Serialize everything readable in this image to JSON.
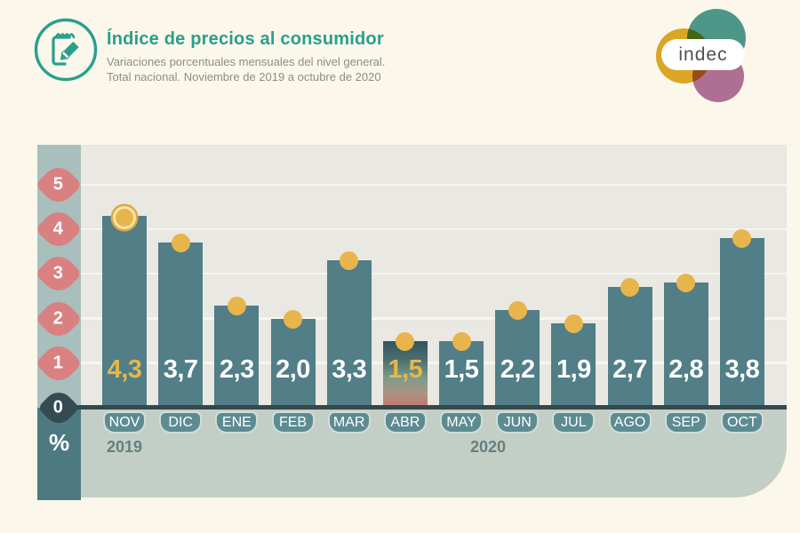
{
  "header": {
    "title": "Índice de precios al consumidor",
    "subtitle_line1": "Variaciones porcentuales mensuales del nivel general.",
    "subtitle_line2": "Total nacional. Noviembre de 2019 a octubre de 2020"
  },
  "logo": {
    "text": "indec",
    "circle_colors": {
      "yellow": "#dfaa28",
      "teal": "#4f9b94",
      "purple": "#b173a0"
    }
  },
  "chart_data": {
    "type": "bar",
    "title": "Índice de precios al consumidor",
    "subtitle": "Variaciones porcentuales mensuales del nivel general. Total nacional. Noviembre de 2019 a octubre de 2020",
    "ylabel": "%",
    "ylim": [
      0,
      5
    ],
    "y_ticks": [
      0,
      1,
      2,
      3,
      4,
      5
    ],
    "grid": true,
    "legend": "none",
    "categories": [
      "NOV",
      "DIC",
      "ENE",
      "FEB",
      "MAR",
      "ABR",
      "MAY",
      "JUN",
      "JUL",
      "AGO",
      "SEP",
      "OCT"
    ],
    "values": [
      4.3,
      3.7,
      2.3,
      2.0,
      3.3,
      1.5,
      1.5,
      2.2,
      1.9,
      2.7,
      2.8,
      3.8
    ],
    "value_labels": [
      "4,3",
      "3,7",
      "2,3",
      "2,0",
      "3,3",
      "1,5",
      "1,5",
      "2,2",
      "1,9",
      "2,7",
      "2,8",
      "3,8"
    ],
    "years": [
      {
        "label": "2019",
        "months": [
          "NOV",
          "DIC"
        ]
      },
      {
        "label": "2020",
        "months": [
          "ENE",
          "FEB",
          "MAR",
          "ABR",
          "MAY",
          "JUN",
          "JUL",
          "AGO",
          "SEP",
          "OCT"
        ]
      }
    ],
    "highlighted_indices": [
      0,
      5
    ],
    "marker": "gold-circle",
    "colors": {
      "bar": "#517e87",
      "bar_gradient_top_nov": "#c5766c",
      "bar_gradient_bottom_abr": "#c07a70",
      "marker_gold": "#e7b54b",
      "tick_salmon": "#d98181",
      "tick_zero_dark": "#334b51",
      "axis_dark": "#35484c",
      "value_gold": "#e6b64c",
      "value_white": "#ffffff",
      "panel": "#eae8e2",
      "y_band": "#a9bfbe",
      "x_band": "#c3cfc6",
      "unit_band": "#4c7a80",
      "background_cream": "#fbf7ea",
      "title_teal": "#28a08c"
    }
  }
}
